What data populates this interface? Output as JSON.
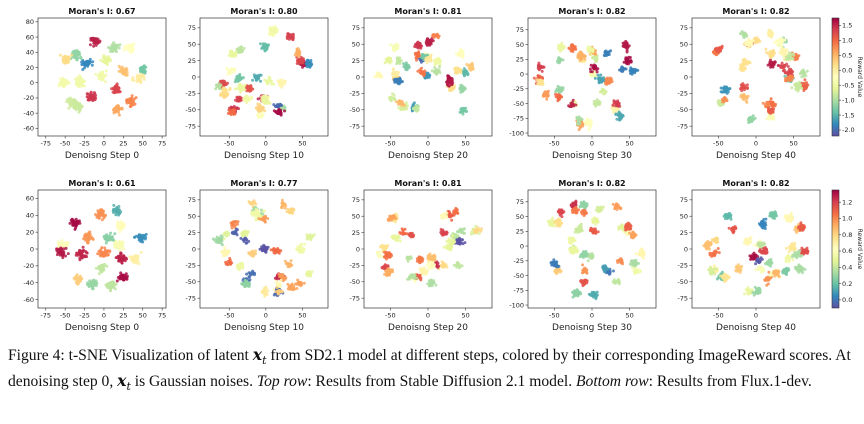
{
  "figure": {
    "rows": [
      {
        "name": "sd21",
        "colorbar": {
          "label": "Reward Value",
          "ticks": [
            1.5,
            1.0,
            0.5,
            0.0,
            -0.5,
            -1.0,
            -1.5,
            -2.0
          ],
          "vmin": -2.2,
          "vmax": 1.75
        },
        "panels": [
          {
            "title": "Moran's I: 0.67",
            "xlabel": "Denoisng Step 0",
            "xticks": [
              -75,
              -50,
              -25,
              0,
              25,
              50,
              75
            ],
            "yticks": [
              80,
              60,
              40,
              20,
              0,
              -20,
              -40,
              -60
            ],
            "xlim": [
              -85,
              80
            ],
            "ylim": [
              -70,
              85
            ],
            "pattern": "grid"
          },
          {
            "title": "Moran's I: 0.80",
            "xlabel": "Denoisng Step 10",
            "xticks": [
              -50,
              0,
              50
            ],
            "yticks": [
              75,
              50,
              25,
              0,
              -25,
              -50,
              -75
            ],
            "xlim": [
              -90,
              85
            ],
            "ylim": [
              -90,
              90
            ],
            "pattern": "blob"
          },
          {
            "title": "Moran's I: 0.81",
            "xlabel": "Denoisng Step 20",
            "xticks": [
              -50,
              0,
              50
            ],
            "yticks": [
              75,
              50,
              25,
              0,
              -25,
              -50,
              -75
            ],
            "xlim": [
              -85,
              85
            ],
            "ylim": [
              -90,
              90
            ],
            "pattern": "blob"
          },
          {
            "title": "Moran's I: 0.82",
            "xlabel": "Denoisng Step 30",
            "xticks": [
              -50,
              0,
              50
            ],
            "yticks": [
              75,
              50,
              25,
              0,
              -25,
              -50,
              -75,
              -100
            ],
            "xlim": [
              -85,
              85
            ],
            "ylim": [
              -105,
              95
            ],
            "pattern": "blob"
          },
          {
            "title": "Moran's I: 0.82",
            "xlabel": "Denoisng Step 40",
            "xticks": [
              -50,
              0,
              50
            ],
            "yticks": [
              75,
              50,
              25,
              0,
              -25,
              -50,
              -75
            ],
            "xlim": [
              -85,
              85
            ],
            "ylim": [
              -90,
              90
            ],
            "pattern": "blob"
          }
        ]
      },
      {
        "name": "flux",
        "colorbar": {
          "label": "Reward Value",
          "ticks": [
            1.2,
            1.0,
            0.8,
            0.6,
            0.4,
            0.2,
            0.0
          ],
          "vmin": -0.1,
          "vmax": 1.35
        },
        "panels": [
          {
            "title": "Moran's I: 0.61",
            "xlabel": "Denoisng Step 0",
            "xticks": [
              -75,
              -50,
              -25,
              0,
              25,
              50,
              75
            ],
            "yticks": [
              60,
              40,
              20,
              0,
              -20,
              -40,
              -60
            ],
            "xlim": [
              -85,
              80
            ],
            "ylim": [
              -70,
              70
            ],
            "pattern": "grid"
          },
          {
            "title": "Moran's I: 0.77",
            "xlabel": "Denoisng Step 10",
            "xticks": [
              -50,
              0,
              50
            ],
            "yticks": [
              75,
              50,
              25,
              0,
              -25,
              -50,
              -75
            ],
            "xlim": [
              -90,
              85
            ],
            "ylim": [
              -90,
              90
            ],
            "pattern": "blob"
          },
          {
            "title": "Moran's I: 0.81",
            "xlabel": "Denoisng Step 20",
            "xticks": [
              -50,
              0,
              50
            ],
            "yticks": [
              75,
              50,
              25,
              0,
              -25,
              -50,
              -75
            ],
            "xlim": [
              -85,
              85
            ],
            "ylim": [
              -90,
              90
            ],
            "pattern": "blob"
          },
          {
            "title": "Moran's I: 0.82",
            "xlabel": "Denoisng Step 30",
            "xticks": [
              -50,
              0,
              50
            ],
            "yticks": [
              75,
              50,
              25,
              0,
              -25,
              -50,
              -75,
              -100
            ],
            "xlim": [
              -85,
              85
            ],
            "ylim": [
              -105,
              95
            ],
            "pattern": "blob"
          },
          {
            "title": "Moran's I: 0.82",
            "xlabel": "Denoisng Step 40",
            "xticks": [
              -50,
              0
            ],
            "yticks": [
              75,
              50,
              25,
              0,
              -25,
              -50,
              -75
            ],
            "xlim": [
              -85,
              85
            ],
            "ylim": [
              -90,
              90
            ],
            "pattern": "blob"
          }
        ]
      }
    ]
  },
  "caption": {
    "label": "Figure 4:",
    "text1": " t-SNE Visualization of latent ",
    "math_symbol": "x",
    "math_sub": "t",
    "text2": " from SD2.1 model at different steps, colored by their corresponding ImageReward scores. At denoising step 0, ",
    "text3": " is Gaussian noises. ",
    "top_label": "Top row",
    "text4": ": Results from Stable Diffusion 2.1 model. ",
    "bottom_label": "Bottom row",
    "text5": ": Results from Flux.1-dev."
  },
  "colors": {
    "colormap": "Spectral",
    "stops": [
      "#5e4fa2",
      "#3288bd",
      "#66c2a5",
      "#abdda4",
      "#e6f598",
      "#ffffbf",
      "#fee08b",
      "#fdae61",
      "#f46d43",
      "#d53e4f",
      "#9e0142"
    ]
  }
}
